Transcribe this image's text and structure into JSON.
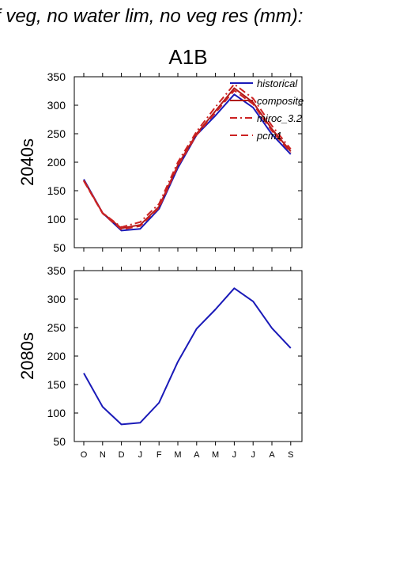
{
  "figure": {
    "header_text": "f veg, no water lim, no veg res (mm):",
    "scenario": "A1B",
    "colors": {
      "historical": "#1a1ab8",
      "composite": "#b01a1a",
      "miroc_3.2": "#cc2222",
      "pcm1": "#cc2222"
    }
  },
  "chart_data": [
    {
      "type": "line",
      "panel_label": "2040s",
      "categories": [
        "O",
        "N",
        "D",
        "J",
        "F",
        "M",
        "A",
        "M",
        "J",
        "J",
        "A",
        "S"
      ],
      "ylim": [
        50,
        350
      ],
      "yticks": [
        50,
        100,
        150,
        200,
        250,
        300,
        350
      ],
      "grid": false,
      "legend": "top-right",
      "series": [
        {
          "name": "historical",
          "color": "#1a1ab8",
          "dash": "solid",
          "values": [
            170,
            111,
            80,
            83,
            118,
            190,
            248,
            282,
            319,
            296,
            249,
            214
          ]
        },
        {
          "name": "composite",
          "color": "#b01a1a",
          "dash": "solid",
          "values": [
            168,
            111,
            84,
            90,
            122,
            195,
            250,
            290,
            330,
            305,
            258,
            219
          ]
        },
        {
          "name": "miroc_3.2",
          "color": "#cc2222",
          "dash": "dashdot",
          "values": [
            168,
            111,
            86,
            95,
            127,
            200,
            254,
            297,
            337,
            312,
            264,
            223
          ]
        },
        {
          "name": "pcm1",
          "color": "#cc2222",
          "dash": "dashed",
          "values": [
            167,
            110,
            82,
            88,
            120,
            193,
            248,
            287,
            326,
            302,
            255,
            217
          ]
        }
      ]
    },
    {
      "type": "line",
      "panel_label": "2080s",
      "categories": [
        "O",
        "N",
        "D",
        "J",
        "F",
        "M",
        "A",
        "M",
        "J",
        "J",
        "A",
        "S"
      ],
      "ylim": [
        50,
        350
      ],
      "yticks": [
        50,
        100,
        150,
        200,
        250,
        300,
        350
      ],
      "grid": false,
      "series": [
        {
          "name": "historical",
          "color": "#1a1ab8",
          "dash": "solid",
          "values": [
            170,
            111,
            80,
            83,
            118,
            190,
            248,
            282,
            319,
            296,
            249,
            214
          ]
        }
      ]
    }
  ]
}
